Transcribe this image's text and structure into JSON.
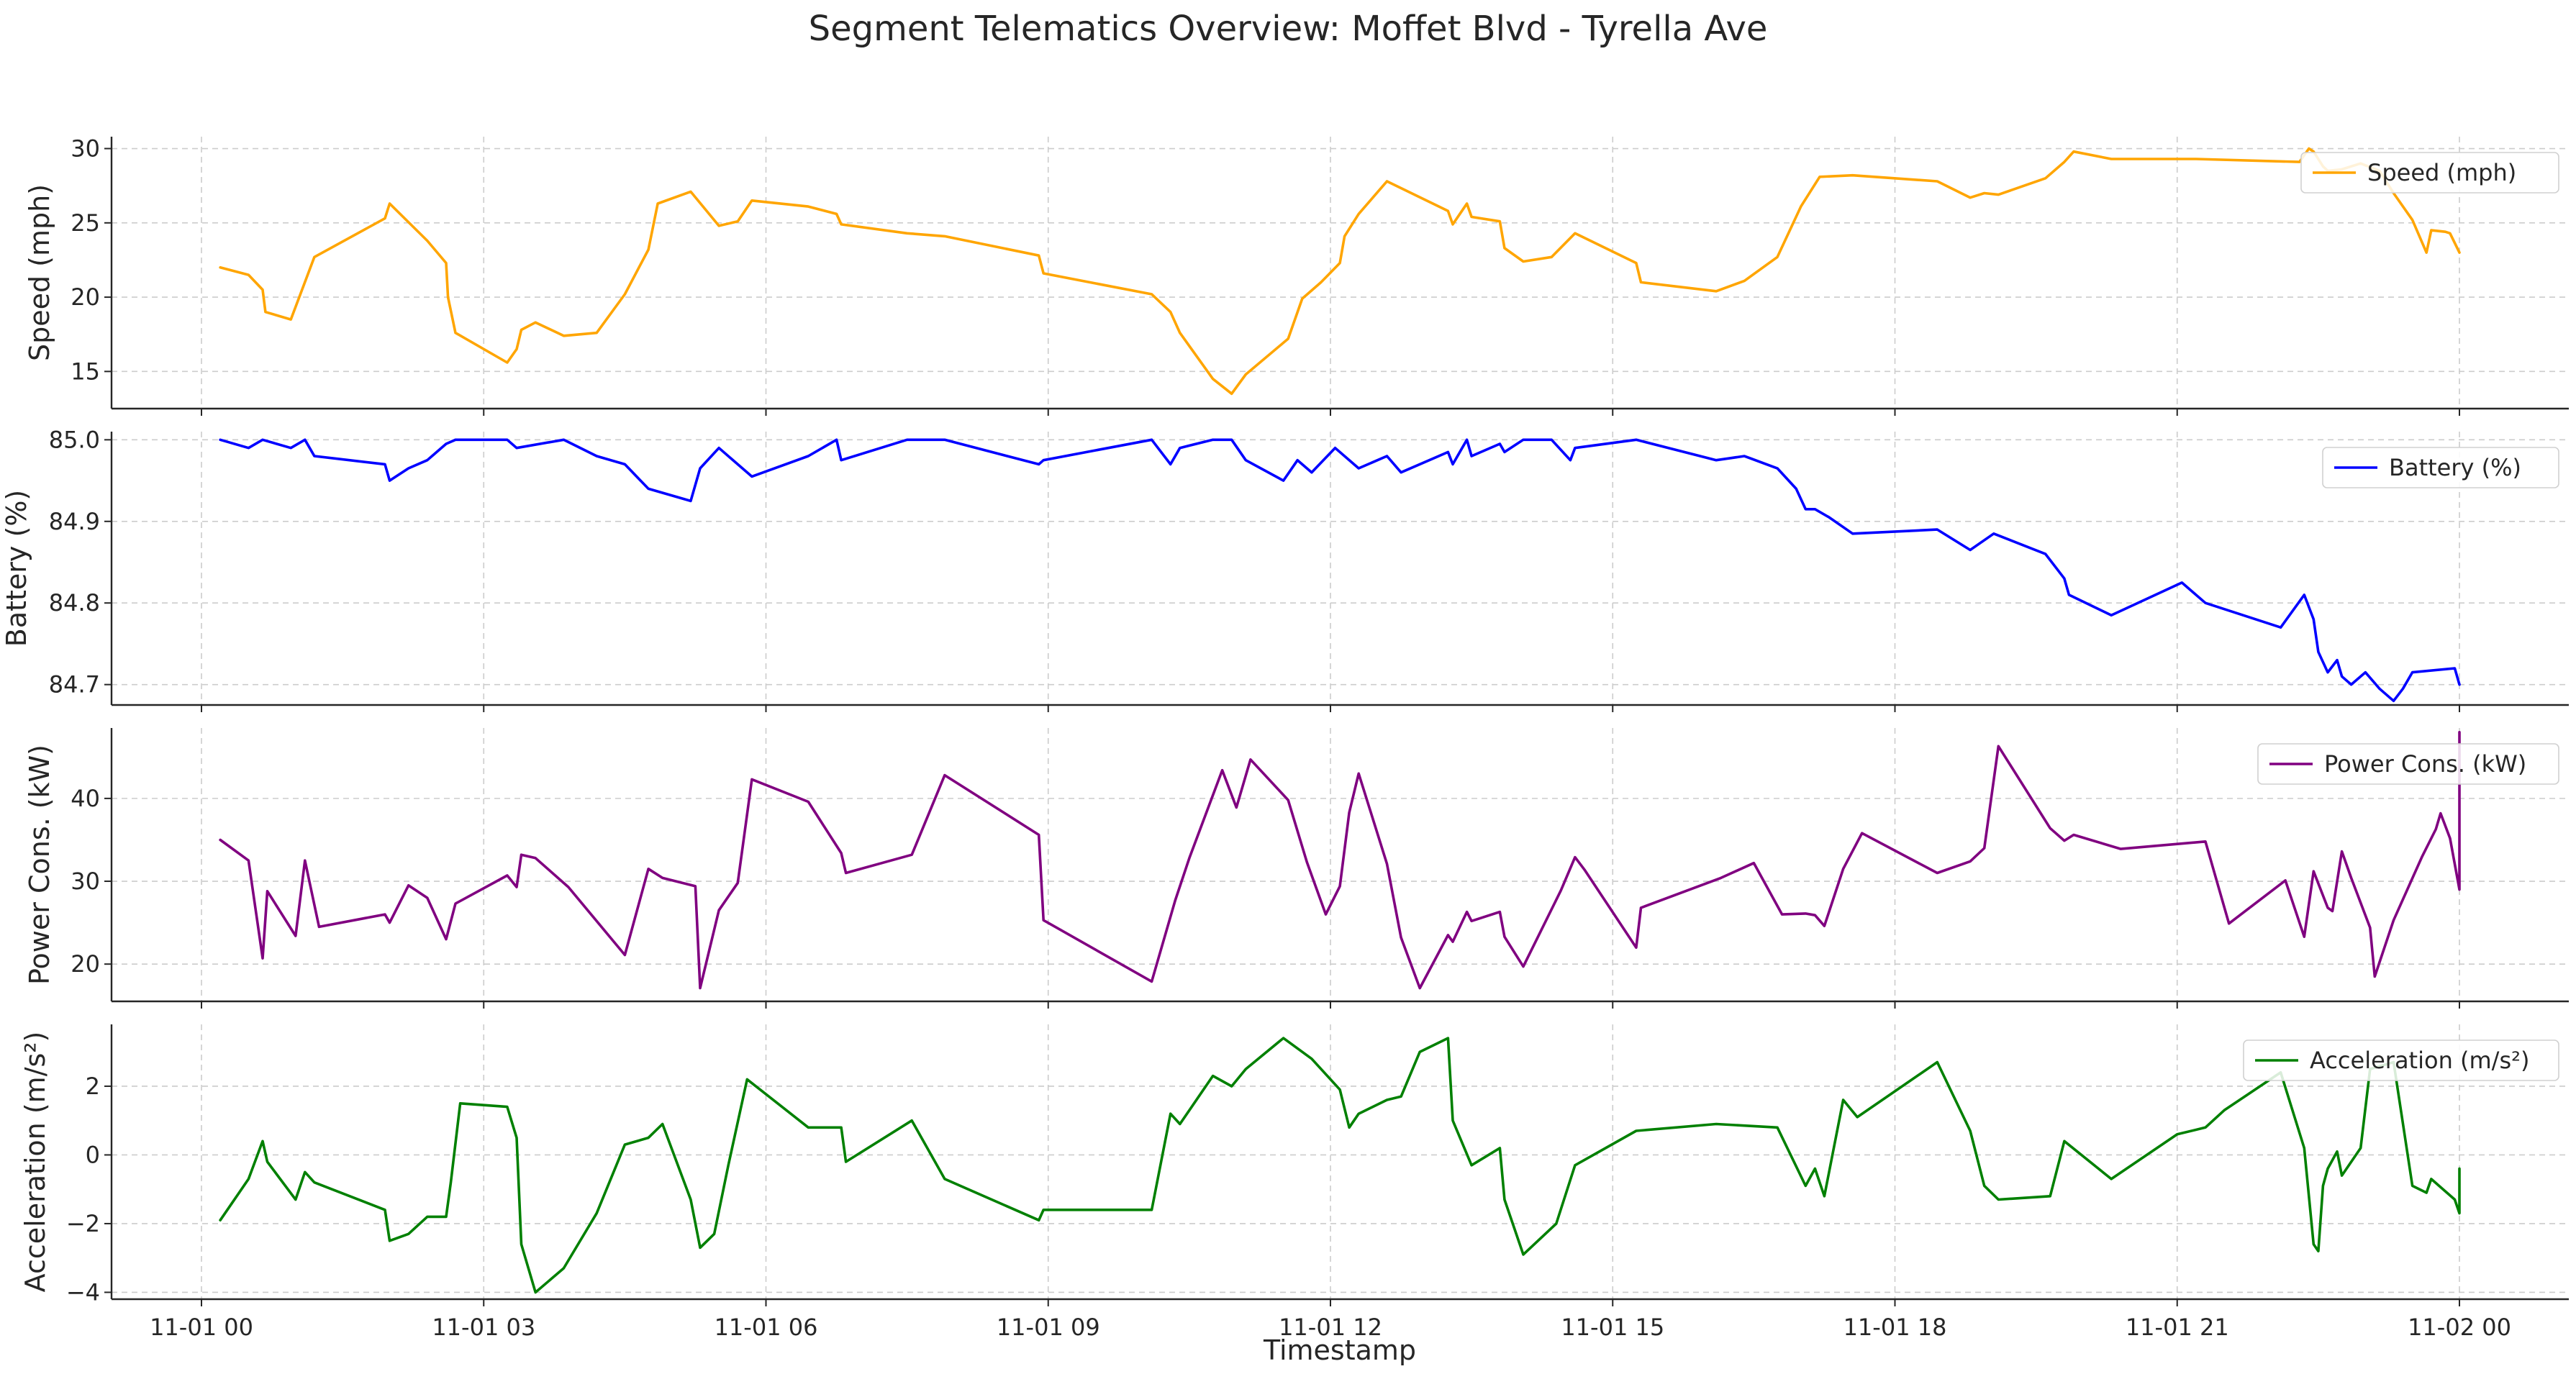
{
  "chart_data": {
    "type": "line",
    "title": "Segment Telematics Overview: Moffet Blvd - Tyrella Ave",
    "xlabel": "Timestamp",
    "x_ticks": [
      "11-01 00",
      "11-01 03",
      "11-01 06",
      "11-01 09",
      "11-01 12",
      "11-01 15",
      "11-01 18",
      "11-01 21",
      "11-02 00"
    ],
    "grid": true,
    "legend_placement": "upper right",
    "panels": [
      {
        "ylabel": "Speed (mph)",
        "ylim": [
          12.5,
          30.8
        ],
        "yticks": [
          "15",
          "20",
          "25",
          "30"
        ],
        "yticks_values": [
          15,
          20,
          25,
          30
        ],
        "series": [
          {
            "name": "Speed (mph)",
            "color": "#ffa500",
            "hours": [
              0.2,
              0.5,
              0.65,
              0.68,
              0.95,
              1.2,
              1.95,
              2.0,
              2.4,
              2.6,
              2.62,
              2.7,
              3.25,
              3.35,
              3.4,
              3.55,
              3.85,
              4.2,
              4.5,
              4.75,
              4.85,
              5.2,
              5.5,
              5.7,
              5.85,
              6.45,
              6.75,
              6.8,
              7.5,
              7.9,
              8.9,
              8.95,
              10.1,
              10.3,
              10.4,
              10.75,
              10.95,
              11.1,
              11.55,
              11.7,
              11.9,
              12.1,
              12.15,
              12.3,
              12.6,
              13.25,
              13.3,
              13.45,
              13.5,
              13.8,
              13.85,
              14.05,
              14.35,
              14.6,
              15.25,
              15.3,
              16.1,
              16.4,
              16.75,
              17.0,
              17.2,
              17.55,
              18.45,
              18.8,
              18.95,
              19.1,
              19.6,
              19.8,
              19.9,
              20.3,
              21.2,
              22.3,
              22.4,
              22.45,
              22.55,
              22.6,
              22.75,
              22.95,
              23.15,
              23.3,
              23.5,
              23.65,
              23.7,
              23.85,
              23.9,
              24.0
            ],
            "values": [
              22.0,
              21.5,
              20.5,
              19.0,
              18.5,
              22.7,
              25.3,
              26.3,
              23.8,
              22.3,
              20.0,
              17.6,
              15.6,
              16.5,
              17.8,
              18.3,
              17.4,
              17.6,
              20.2,
              23.2,
              26.3,
              27.1,
              24.8,
              25.1,
              26.5,
              26.1,
              25.6,
              24.9,
              24.3,
              24.1,
              22.8,
              21.6,
              20.2,
              19.0,
              17.6,
              14.5,
              13.5,
              14.8,
              17.2,
              19.9,
              21.0,
              22.3,
              24.1,
              25.6,
              27.8,
              25.8,
              24.9,
              26.3,
              25.4,
              25.1,
              23.3,
              22.4,
              22.7,
              24.3,
              22.3,
              21.0,
              20.4,
              21.1,
              22.7,
              26.1,
              28.1,
              28.2,
              27.8,
              26.7,
              27.0,
              26.9,
              28.0,
              29.1,
              29.8,
              29.3,
              29.3,
              29.1,
              30.0,
              29.8,
              28.8,
              28.5,
              28.6,
              29.0,
              28.5,
              27.0,
              25.2,
              23.0,
              24.5,
              24.4,
              24.3,
              23.0
            ]
          }
        ]
      },
      {
        "ylabel": "Battery (%)",
        "ylim": [
          84.675,
          85.01
        ],
        "yticks": [
          "84.7",
          "84.8",
          "84.9",
          "85.0"
        ],
        "yticks_values": [
          84.7,
          84.8,
          84.9,
          85.0
        ],
        "series": [
          {
            "name": "Battery (%)",
            "color": "#0000ff",
            "hours": [
              0.2,
              0.5,
              0.65,
              0.95,
              1.1,
              1.2,
              1.95,
              2.0,
              2.2,
              2.4,
              2.6,
              2.7,
              3.25,
              3.35,
              3.85,
              4.2,
              4.5,
              4.75,
              5.2,
              5.3,
              5.5,
              5.85,
              6.45,
              6.75,
              6.8,
              7.5,
              7.9,
              8.9,
              8.95,
              10.1,
              10.3,
              10.4,
              10.75,
              10.95,
              11.1,
              11.5,
              11.65,
              11.8,
              12.05,
              12.3,
              12.6,
              12.75,
              13.25,
              13.3,
              13.45,
              13.5,
              13.8,
              13.85,
              14.05,
              14.35,
              14.55,
              14.6,
              15.25,
              16.1,
              16.4,
              16.75,
              16.95,
              17.05,
              17.15,
              17.3,
              17.55,
              18.45,
              18.8,
              19.05,
              19.6,
              19.8,
              19.85,
              20.3,
              21.05,
              21.3,
              22.1,
              22.35,
              22.45,
              22.5,
              22.6,
              22.7,
              22.75,
              22.85,
              23.0,
              23.15,
              23.3,
              23.4,
              23.5,
              23.95,
              24.0
            ],
            "values": [
              85.0,
              84.99,
              85.0,
              84.99,
              85.0,
              84.98,
              84.97,
              84.95,
              84.965,
              84.975,
              84.995,
              85.0,
              85.0,
              84.99,
              85.0,
              84.98,
              84.97,
              84.94,
              84.925,
              84.965,
              84.99,
              84.955,
              84.98,
              85.0,
              84.975,
              85.0,
              85.0,
              84.97,
              84.975,
              85.0,
              84.97,
              84.99,
              85.0,
              85.0,
              84.975,
              84.95,
              84.975,
              84.96,
              84.99,
              84.965,
              84.98,
              84.96,
              84.985,
              84.97,
              85.0,
              84.98,
              84.995,
              84.985,
              85.0,
              85.0,
              84.975,
              84.99,
              85.0,
              84.975,
              84.98,
              84.965,
              84.94,
              84.915,
              84.915,
              84.905,
              84.885,
              84.89,
              84.865,
              84.885,
              84.86,
              84.83,
              84.81,
              84.785,
              84.825,
              84.8,
              84.77,
              84.81,
              84.78,
              84.74,
              84.715,
              84.73,
              84.71,
              84.7,
              84.715,
              84.695,
              84.68,
              84.695,
              84.715,
              84.72,
              84.7
            ]
          }
        ]
      },
      {
        "ylabel": "Power Cons. (kW)",
        "ylim": [
          15.5,
          48.5
        ],
        "yticks": [
          "20",
          "30",
          "40"
        ],
        "yticks_values": [
          20,
          30,
          40
        ],
        "series": [
          {
            "name": "Power Cons. (kW)",
            "color": "#800080",
            "hours": [
              0.2,
              0.5,
              0.65,
              0.7,
              1.0,
              1.1,
              1.25,
              1.95,
              2.0,
              2.2,
              2.4,
              2.6,
              2.7,
              3.25,
              3.35,
              3.4,
              3.55,
              3.9,
              4.5,
              4.75,
              4.9,
              5.25,
              5.3,
              5.5,
              5.7,
              5.85,
              6.45,
              6.8,
              6.85,
              7.55,
              7.9,
              8.9,
              8.95,
              10.1,
              10.35,
              10.5,
              10.85,
              11.0,
              11.15,
              11.55,
              11.75,
              11.95,
              12.1,
              12.2,
              12.3,
              12.6,
              12.75,
              12.95,
              13.25,
              13.3,
              13.45,
              13.5,
              13.8,
              13.85,
              14.05,
              14.45,
              14.6,
              14.7,
              15.25,
              15.3,
              16.15,
              16.5,
              16.8,
              17.05,
              17.15,
              17.25,
              17.45,
              17.65,
              18.45,
              18.8,
              18.95,
              19.1,
              19.65,
              19.8,
              19.9,
              20.4,
              21.3,
              21.55,
              22.15,
              22.35,
              22.45,
              22.6,
              22.65,
              22.75,
              22.85,
              23.05,
              23.1,
              23.3,
              23.6,
              23.75,
              23.8,
              23.9,
              24.0,
              24.0,
              24.0
            ],
            "values": [
              35.0,
              32.5,
              20.7,
              28.8,
              23.4,
              32.5,
              24.5,
              26.0,
              25.0,
              29.5,
              28.0,
              23.0,
              27.3,
              30.7,
              29.3,
              33.2,
              32.8,
              29.3,
              21.1,
              31.5,
              30.4,
              29.4,
              17.1,
              26.5,
              29.8,
              42.3,
              39.6,
              33.4,
              31.0,
              33.2,
              42.8,
              35.6,
              25.3,
              17.9,
              27.7,
              32.8,
              43.4,
              38.9,
              44.7,
              39.8,
              32.3,
              26.0,
              29.4,
              38.3,
              43.0,
              32.1,
              23.2,
              17.1,
              23.5,
              22.7,
              26.3,
              25.2,
              26.3,
              23.3,
              19.7,
              28.9,
              32.9,
              31.4,
              22.0,
              26.8,
              30.4,
              32.2,
              26.0,
              26.1,
              25.9,
              24.6,
              31.5,
              35.8,
              31.0,
              32.4,
              34.0,
              46.3,
              36.4,
              34.9,
              35.6,
              33.9,
              34.8,
              24.9,
              30.1,
              23.3,
              31.2,
              26.8,
              26.4,
              33.6,
              30.4,
              24.4,
              18.5,
              25.3,
              32.9,
              36.3,
              38.2,
              35.2,
              29.0,
              36.4,
              48.0
            ]
          }
        ]
      },
      {
        "ylabel": "Acceleration (m/s²)",
        "ylim": [
          -4.2,
          3.8
        ],
        "yticks": [
          "−4",
          "−2",
          "0",
          "2"
        ],
        "yticks_values": [
          -4,
          -2,
          0,
          2
        ],
        "series": [
          {
            "name": "Acceleration (m/s²)",
            "color": "#008000",
            "hours": [
              0.2,
              0.5,
              0.65,
              0.7,
              1.0,
              1.1,
              1.2,
              1.95,
              2.0,
              2.2,
              2.4,
              2.6,
              2.65,
              2.75,
              3.25,
              3.35,
              3.4,
              3.55,
              3.85,
              4.2,
              4.5,
              4.75,
              4.9,
              5.2,
              5.3,
              5.45,
              5.6,
              5.8,
              6.45,
              6.8,
              6.85,
              7.55,
              7.9,
              8.9,
              8.95,
              10.1,
              10.3,
              10.4,
              10.75,
              10.95,
              11.1,
              11.5,
              11.8,
              12.1,
              12.2,
              12.3,
              12.6,
              12.75,
              12.95,
              13.25,
              13.3,
              13.5,
              13.8,
              13.85,
              14.05,
              14.4,
              14.6,
              15.25,
              16.1,
              16.75,
              17.05,
              17.15,
              17.25,
              17.45,
              17.6,
              18.45,
              18.8,
              18.95,
              19.1,
              19.65,
              19.8,
              20.3,
              21.0,
              21.3,
              21.5,
              22.1,
              22.35,
              22.45,
              22.5,
              22.55,
              22.6,
              22.7,
              22.75,
              22.95,
              23.05,
              23.3,
              23.5,
              23.65,
              23.7,
              23.95,
              24.0,
              24.0
            ],
            "values": [
              -1.9,
              -0.7,
              0.4,
              -0.2,
              -1.3,
              -0.5,
              -0.8,
              -1.6,
              -2.5,
              -2.3,
              -1.8,
              -1.8,
              -0.8,
              1.5,
              1.4,
              0.5,
              -2.6,
              -4.0,
              -3.3,
              -1.7,
              0.3,
              0.5,
              0.9,
              -1.3,
              -2.7,
              -2.3,
              -0.3,
              2.2,
              0.8,
              0.8,
              -0.2,
              1.0,
              -0.7,
              -1.9,
              -1.6,
              -1.6,
              1.2,
              0.9,
              2.3,
              2.0,
              2.5,
              3.4,
              2.8,
              1.9,
              0.8,
              1.2,
              1.6,
              1.7,
              3.0,
              3.4,
              1.0,
              -0.3,
              0.2,
              -1.3,
              -2.9,
              -2.0,
              -0.3,
              0.7,
              0.9,
              0.8,
              -0.9,
              -0.4,
              -1.2,
              1.6,
              1.1,
              2.7,
              0.7,
              -0.9,
              -1.3,
              -1.2,
              0.4,
              -0.7,
              0.6,
              0.8,
              1.3,
              2.4,
              0.2,
              -2.6,
              -2.8,
              -0.9,
              -0.4,
              0.1,
              -0.6,
              0.2,
              2.5,
              2.7,
              -0.9,
              -1.1,
              -0.7,
              -1.3,
              -1.7,
              -0.4
            ]
          }
        ]
      }
    ]
  }
}
